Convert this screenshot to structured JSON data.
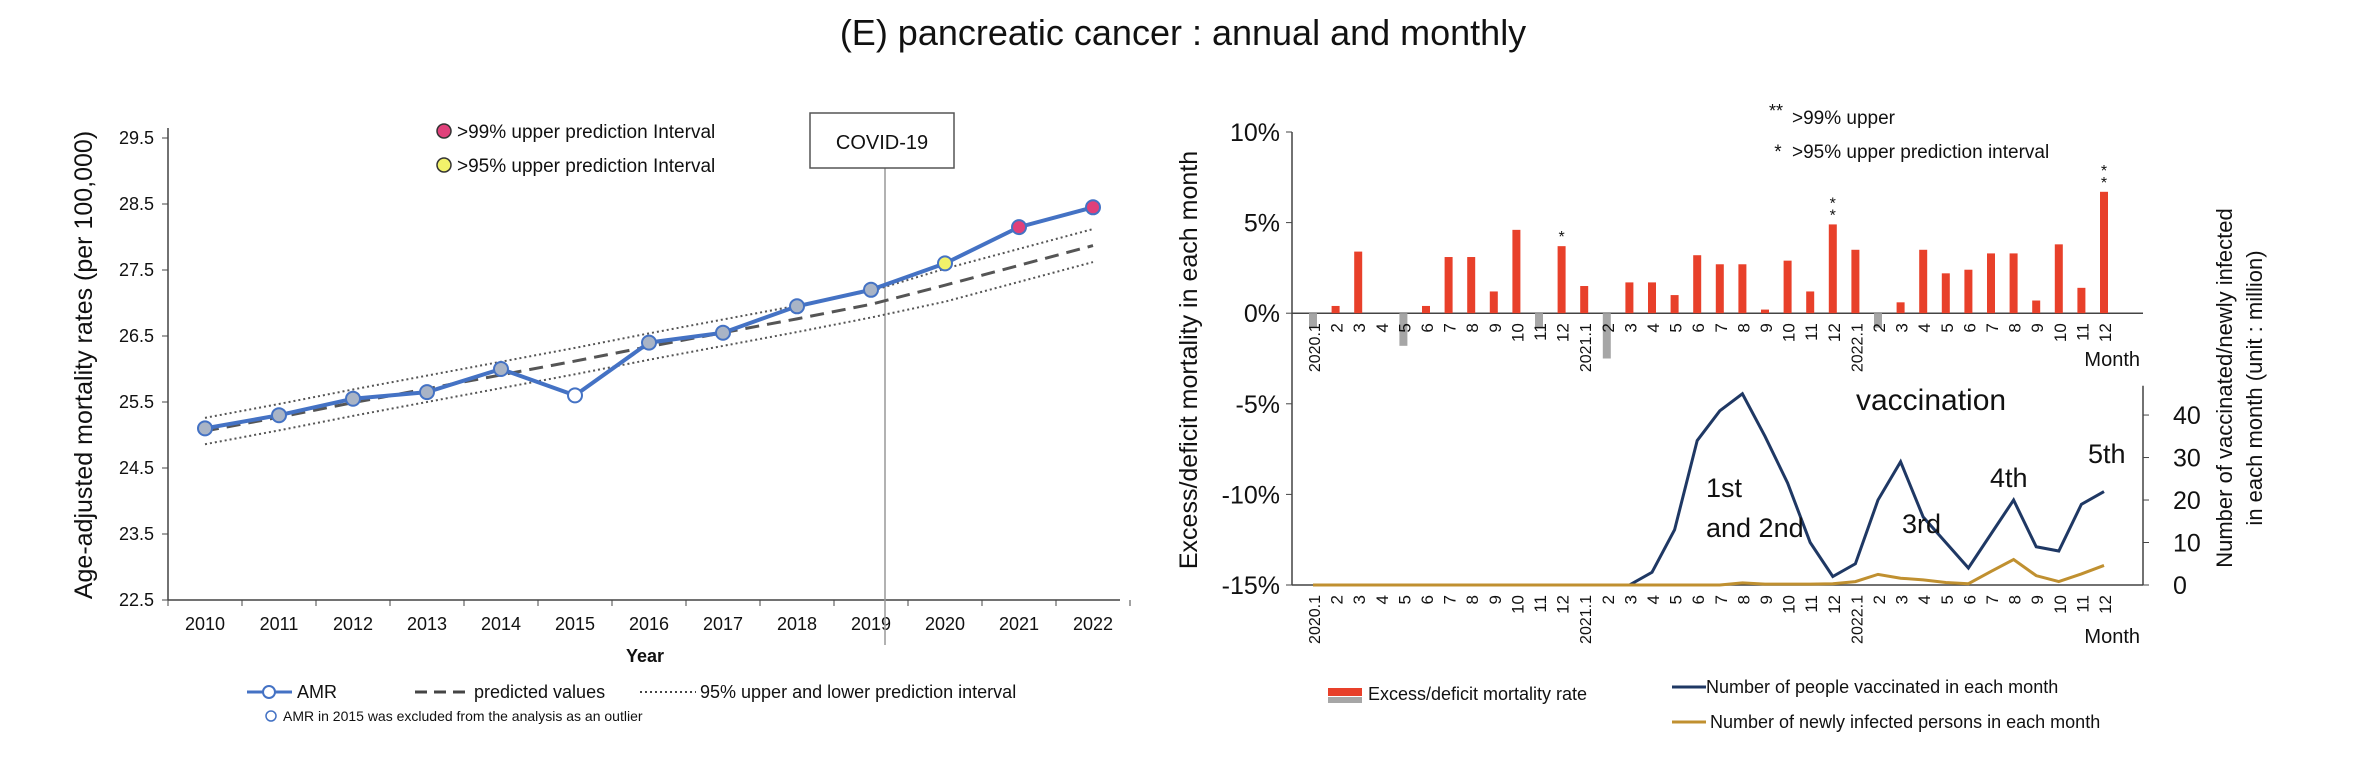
{
  "figure_title": "(E) pancreatic cancer : annual and monthly",
  "colors": {
    "amr_line": "#4472c4",
    "marker_fill": "#a9b4c6",
    "pi99_marker": "#e0407a",
    "pi95_marker": "#f2f26a",
    "excess_bar": "#e8402a",
    "deficit_bar": "#a6a6a6",
    "vaccinated_line": "#1f3864",
    "infected_line": "#c09030"
  },
  "chart_data": [
    {
      "type": "line",
      "xlabel": "Year",
      "ylabel": "Age-adjusted mortality rates (per 100,000)",
      "ylim": [
        22.5,
        29.5
      ],
      "yticks": [
        "22.5",
        "23.5",
        "24.5",
        "25.5",
        "26.5",
        "27.5",
        "28.5",
        "29.5"
      ],
      "x": [
        2010,
        2011,
        2012,
        2013,
        2014,
        2015,
        2016,
        2017,
        2018,
        2019,
        2020,
        2021,
        2022
      ],
      "series": [
        {
          "name": "AMR",
          "values": [
            25.1,
            25.3,
            25.55,
            25.65,
            26.0,
            25.6,
            26.4,
            26.55,
            26.95,
            27.2,
            27.6,
            28.15,
            28.45
          ]
        },
        {
          "name": "predicted values",
          "values": [
            25.06,
            25.27,
            25.49,
            25.7,
            25.91,
            26.12,
            26.34,
            26.55,
            26.76,
            26.98,
            27.27,
            27.57,
            27.87
          ]
        },
        {
          "name": "95% upper and lower prediction interval",
          "upper": [
            25.26,
            25.47,
            25.69,
            25.9,
            26.11,
            26.32,
            26.54,
            26.75,
            26.96,
            27.18,
            27.52,
            27.82,
            28.12
          ],
          "lower": [
            24.86,
            25.07,
            25.29,
            25.5,
            25.71,
            25.92,
            26.14,
            26.35,
            26.56,
            26.78,
            27.02,
            27.32,
            27.62
          ]
        }
      ],
      "outlier_year": 2015,
      "pi99_years": [
        2021,
        2022
      ],
      "pi95_years": [
        2020
      ],
      "legend": {
        "pi99": ">99% upper prediction Interval",
        "pi95": ">95% upper prediction Interval",
        "amr": "AMR",
        "predicted": "predicted values",
        "interval": "95% upper and lower prediction interval",
        "outlier_note": "AMR in 2015 was excluded from the analysis as an outlier"
      },
      "annotation": "COVID-19"
    },
    {
      "type": "bar",
      "ylabel": "Excess/deficit mortality in each month",
      "y2label_line1": "Number of vaccinated/newly infected",
      "y2label_line2": "in each month    (unit : million)",
      "ylim": [
        -15,
        10
      ],
      "yticks": [
        "10%",
        "5%",
        "0%",
        "-5%",
        "-10%",
        "-15%"
      ],
      "y2ticks": [
        "40",
        "30",
        "20",
        "10",
        "0"
      ],
      "y2lim": [
        0,
        45
      ],
      "categories": [
        "2020.1",
        "2",
        "3",
        "4",
        "5",
        "6",
        "7",
        "8",
        "9",
        "10",
        "11",
        "12",
        "2021.1",
        "2",
        "3",
        "4",
        "5",
        "6",
        "7",
        "8",
        "9",
        "10",
        "11",
        "12",
        "2022.1",
        "2",
        "3",
        "4",
        "5",
        "6",
        "7",
        "8",
        "9",
        "10",
        "11",
        "12"
      ],
      "xaxis_suffix": "Month",
      "series": [
        {
          "name": "Excess/deficit mortality rate",
          "values": [
            -0.8,
            0.4,
            3.4,
            0.0,
            -1.8,
            0.4,
            3.1,
            3.1,
            1.2,
            4.6,
            -0.8,
            3.7,
            1.5,
            -2.5,
            1.7,
            1.7,
            1.0,
            3.2,
            2.7,
            2.7,
            0.2,
            2.9,
            1.2,
            4.9,
            3.5,
            -0.8,
            0.6,
            3.5,
            2.2,
            2.4,
            3.3,
            3.3,
            0.7,
            3.8,
            1.4,
            6.7
          ]
        },
        {
          "name": "Number of people vaccinated in each month",
          "values": [
            0,
            0,
            0,
            0,
            0,
            0,
            0,
            0,
            0,
            0,
            0,
            0,
            0,
            0,
            0,
            3,
            13,
            34,
            41,
            45,
            35,
            24,
            10,
            2,
            5,
            20,
            29,
            16,
            10,
            4,
            12,
            20,
            9,
            8,
            19,
            22
          ]
        },
        {
          "name": "Number of newly infected persons in each month",
          "values": [
            0,
            0,
            0,
            0,
            0,
            0,
            0,
            0,
            0,
            0,
            0,
            0,
            0,
            0,
            0,
            0,
            0,
            0,
            0,
            0.5,
            0.2,
            0.2,
            0.2,
            0.3,
            0.8,
            2.5,
            1.6,
            1.2,
            0.6,
            0.3,
            3.2,
            6,
            2.2,
            0.8,
            2.6,
            4.6
          ]
        }
      ],
      "markers": {
        "double_star_months": [
          "2021.12",
          "2022.12"
        ],
        "single_star_months": [
          "2020.12"
        ]
      },
      "legend": {
        "double_star": ">99% upper",
        "single_star": ">95% upper prediction interval",
        "bar": "Excess/deficit mortality rate",
        "vaccinated": "Number of people vaccinated in each month",
        "infected": "Number of newly infected persons in each month"
      },
      "annotations": {
        "vaccination": "vaccination",
        "first_a": "1st",
        "first_b": "and 2nd",
        "third": "3rd",
        "fourth": "4th",
        "fifth": "5th"
      }
    }
  ]
}
